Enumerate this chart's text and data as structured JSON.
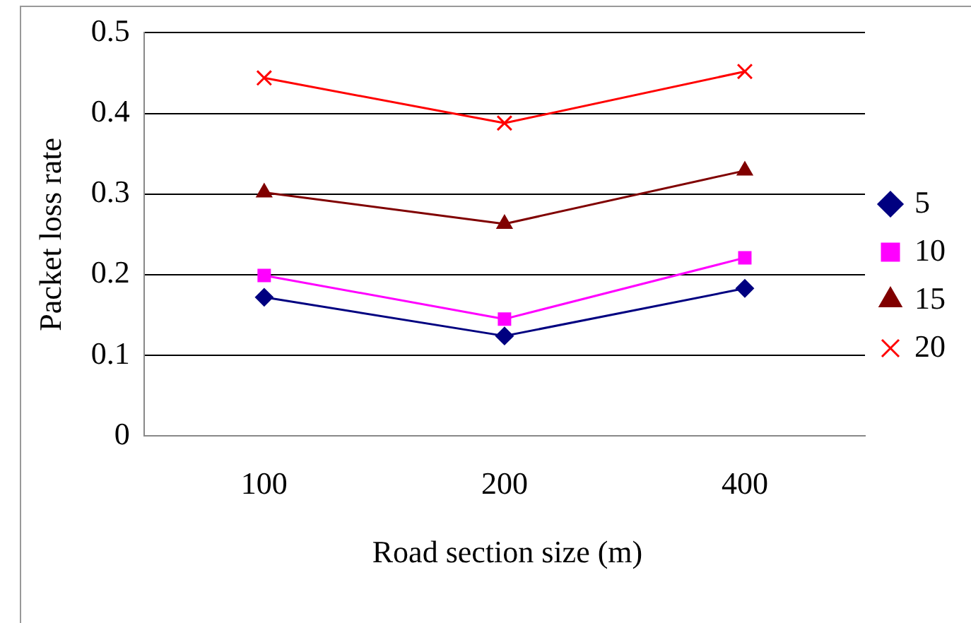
{
  "chart_data": {
    "type": "line",
    "xlabel": "Road section size (m)",
    "ylabel": "Packet loss rate",
    "categories": [
      "100",
      "200",
      "400"
    ],
    "series": [
      {
        "name": "5",
        "color": "#000080",
        "marker": "diamond",
        "values": [
          0.172,
          0.124,
          0.183
        ]
      },
      {
        "name": "10",
        "color": "#ff00ff",
        "marker": "square",
        "values": [
          0.199,
          0.145,
          0.221
        ]
      },
      {
        "name": "15",
        "color": "#800000",
        "marker": "triangle",
        "values": [
          0.302,
          0.263,
          0.329
        ]
      },
      {
        "name": "20",
        "color": "#ff0000",
        "marker": "cross",
        "values": [
          0.444,
          0.388,
          0.452
        ]
      }
    ],
    "ylim": [
      0,
      0.5
    ],
    "yticks": [
      0,
      0.1,
      0.2,
      0.3,
      0.4,
      0.5
    ],
    "grid": "y",
    "legend": "right"
  }
}
